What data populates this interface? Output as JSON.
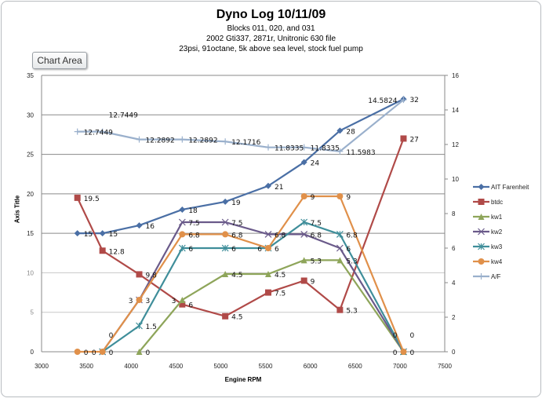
{
  "chart_data": {
    "type": "line",
    "title": "Dyno Log 10/11/09",
    "subtitles": [
      "Blocks 011, 020, and 031",
      "2002 Gti337, 2871r, Unitronic 630 file",
      "23psi, 91octane, 5k above sea level, stock fuel pump"
    ],
    "xlabel": "Engine RPM",
    "ylabel": "Axis Title",
    "xlim": [
      3000,
      7500
    ],
    "xticks": [
      3000,
      3500,
      4000,
      4500,
      5000,
      5500,
      6000,
      6500,
      7000,
      7500
    ],
    "ylim": [
      0,
      35
    ],
    "yticks": [
      0,
      5,
      10,
      15,
      20,
      25,
      30,
      35
    ],
    "y2lim": [
      0,
      16
    ],
    "y2ticks": [
      0,
      2,
      4,
      6,
      8,
      10,
      12,
      14,
      16
    ],
    "grid": true,
    "legend": "right",
    "x": [
      3400,
      3680,
      4090,
      4570,
      5050,
      5530,
      5930,
      6330,
      7040
    ],
    "series": [
      {
        "name": "AIT Farenheit",
        "axis": "left",
        "color": "#4a6fa5",
        "marker": "diamond",
        "values": [
          15,
          15,
          16,
          18,
          19,
          21,
          24,
          28,
          32
        ]
      },
      {
        "name": "btdc",
        "axis": "left",
        "color": "#b04a48",
        "marker": "square",
        "values": [
          19.5,
          12.8,
          9.8,
          6,
          4.5,
          7.5,
          9,
          5.3,
          27
        ]
      },
      {
        "name": "kw1",
        "axis": "right",
        "color": "#8ea55a",
        "marker": "triangle",
        "values": [
          null,
          null,
          0,
          3,
          4.5,
          4.5,
          5.3,
          5.3,
          0
        ]
      },
      {
        "name": "kw2",
        "axis": "right",
        "color": "#6a5a8a",
        "marker": "x",
        "values": [
          null,
          0,
          3,
          7.5,
          7.5,
          6.8,
          6.8,
          6,
          0
        ]
      },
      {
        "name": "kw3",
        "axis": "right",
        "color": "#3f8e9a",
        "marker": "star",
        "values": [
          null,
          0,
          1.5,
          6,
          6,
          6,
          7.5,
          6.8,
          0
        ]
      },
      {
        "name": "kw4",
        "axis": "right",
        "color": "#e0904a",
        "marker": "circle",
        "values": [
          0,
          0,
          3,
          6.8,
          6.8,
          6,
          9,
          9,
          0
        ]
      },
      {
        "name": "A/F",
        "axis": "right",
        "color": "#9ab0cc",
        "marker": "plus",
        "values": [
          12.7449,
          12.7449,
          12.2892,
          12.2892,
          12.1716,
          11.8335,
          11.8335,
          11.5983,
          14.5824
        ]
      }
    ]
  },
  "ui": {
    "chart_area_tooltip": "Chart Area"
  }
}
